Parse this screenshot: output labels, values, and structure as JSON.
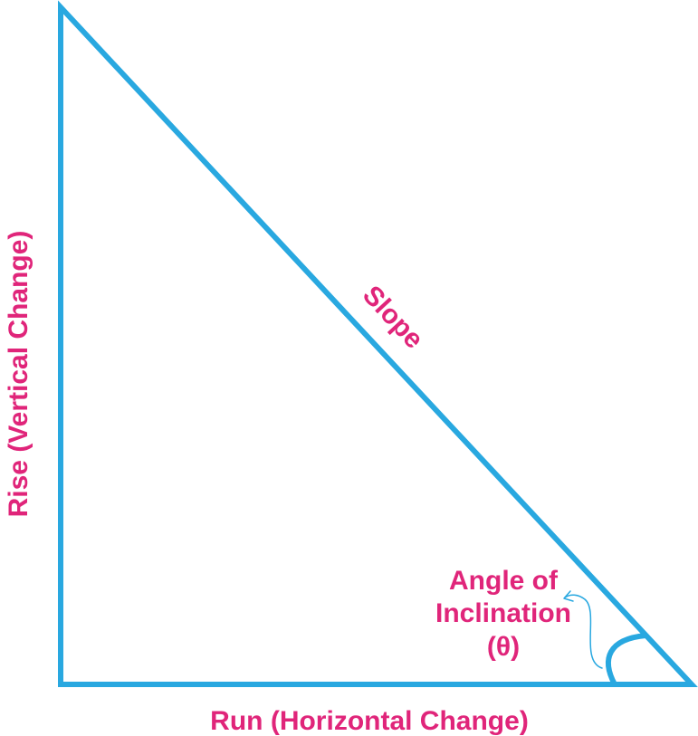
{
  "diagram": {
    "labels": {
      "slope": "Slope",
      "rise": "Rise (Vertical Change)",
      "run": "Run (Horizontal Change)",
      "angle_line1": "Angle of",
      "angle_line2": "Inclination",
      "angle_line3": "(θ)"
    },
    "colors": {
      "triangle_stroke": "#29A8E0",
      "label_text": "#E0257A",
      "background": "#ffffff"
    }
  }
}
